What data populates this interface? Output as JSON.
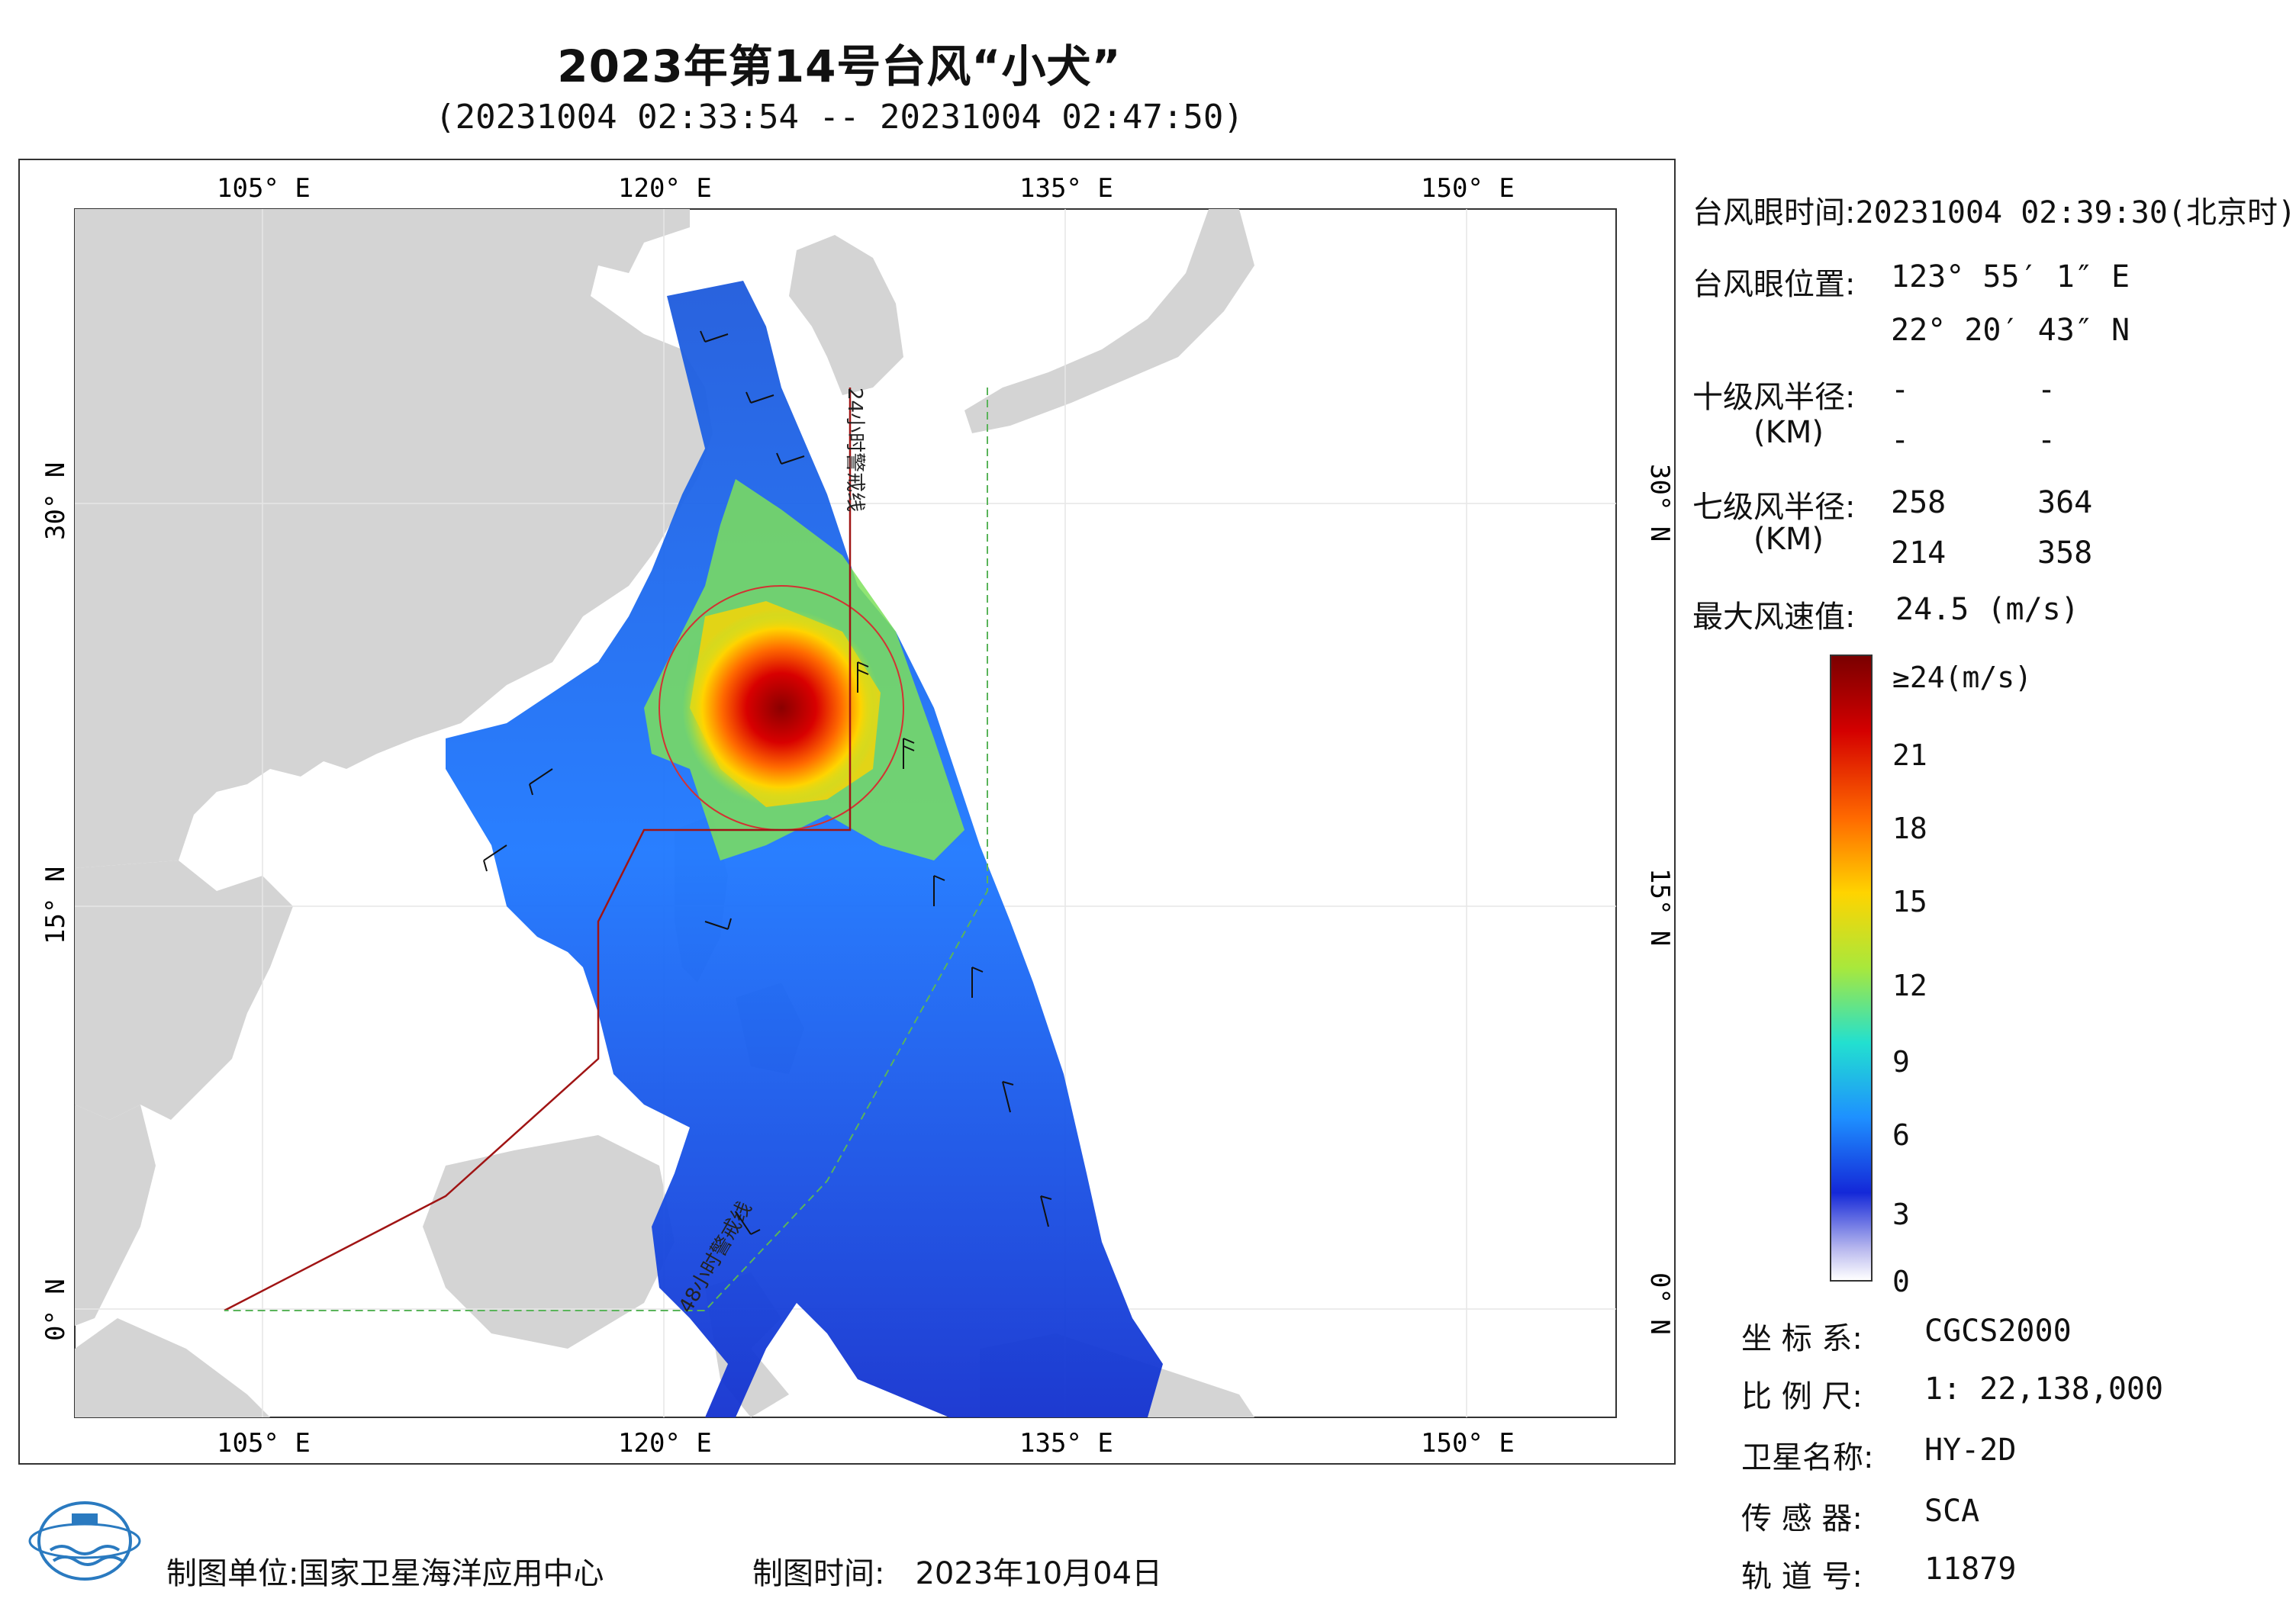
{
  "title": "2023年第14号台风“小犬”",
  "subtitle": "(20231004 02:33:54 -- 20231004 02:47:50)",
  "axes": {
    "lon_ticks": [
      "105° E",
      "120° E",
      "135° E",
      "150° E"
    ],
    "lat_ticks": [
      "30° N",
      "15° N",
      "0° N"
    ]
  },
  "map_labels": {
    "warn24": "24小时警戒线",
    "warn48": "48小时警戒线"
  },
  "info": {
    "eye_time_label": "台风眼时间:",
    "eye_time_value": "20231004 02:39:30(北京时)",
    "eye_pos_label": "台风眼位置:",
    "eye_lon": "123° 55′ 1″ E",
    "eye_lat": "22° 20′ 43″ N",
    "r10_label": "十级风半径:",
    "km_label_1": "(KM)",
    "r10_values": [
      "-",
      "-",
      "-",
      "-"
    ],
    "r7_label": "七级风半径:",
    "km_label_2": "(KM)",
    "r7_values": [
      "258",
      "364",
      "214",
      "358"
    ],
    "max_wind_label": "最大风速值:",
    "max_wind_value": "24.5  (m/s)"
  },
  "colorbar": {
    "labels": [
      "≥24(m/s)",
      "21",
      "18",
      "15",
      "12",
      "9",
      "6",
      "3",
      "0"
    ],
    "colors": [
      "#7a0000",
      "#d40000",
      "#ff6a00",
      "#ffd400",
      "#a8e83c",
      "#22e0d0",
      "#1e90ff",
      "#1428d8",
      "#c8c8f0",
      "#ffffff"
    ]
  },
  "meta": {
    "crs_label": "坐 标 系:",
    "crs_value": "CGCS2000",
    "scale_label": "比 例 尺:",
    "scale_value": "1: 22,138,000",
    "satellite_label": "卫星名称:",
    "satellite_value": "HY-2D",
    "sensor_label": "传 感 器:",
    "sensor_value": "SCA",
    "orbit_label": "轨 道 号:",
    "orbit_value": "11879"
  },
  "footer": {
    "org_label": "制图单位:",
    "org_value": "国家卫星海洋应用中心",
    "date_label": "制图时间:",
    "date_value": "2023年10月04日"
  }
}
